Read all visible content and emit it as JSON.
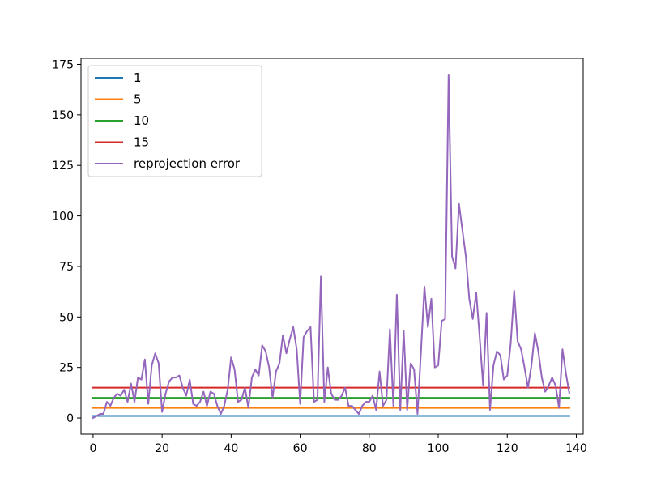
{
  "chart_data": {
    "type": "line",
    "title": "",
    "xlabel": "",
    "ylabel": "",
    "xlim": [
      -3.5,
      142
    ],
    "ylim": [
      -8,
      178
    ],
    "xticks": [
      0,
      20,
      40,
      60,
      80,
      100,
      120,
      140
    ],
    "yticks": [
      0,
      25,
      50,
      75,
      100,
      125,
      150,
      175
    ],
    "grid": false,
    "legend_position": "top-left",
    "series": [
      {
        "name": "1",
        "color": "#1f77b4",
        "x": [
          0,
          138
        ],
        "values": [
          1,
          1
        ]
      },
      {
        "name": "5",
        "color": "#ff7f0e",
        "x": [
          0,
          138
        ],
        "values": [
          5,
          5
        ]
      },
      {
        "name": "10",
        "color": "#2ca02c",
        "x": [
          0,
          138
        ],
        "values": [
          10,
          10
        ]
      },
      {
        "name": "15",
        "color": "#d62728",
        "x": [
          0,
          138
        ],
        "values": [
          15,
          15
        ]
      },
      {
        "name": "reprojection error",
        "color": "#9467bd",
        "x": [
          0,
          1,
          2,
          3,
          4,
          5,
          6,
          7,
          8,
          9,
          10,
          11,
          12,
          13,
          14,
          15,
          16,
          17,
          18,
          19,
          20,
          21,
          22,
          23,
          24,
          25,
          26,
          27,
          28,
          29,
          30,
          31,
          32,
          33,
          34,
          35,
          36,
          37,
          38,
          39,
          40,
          41,
          42,
          43,
          44,
          45,
          46,
          47,
          48,
          49,
          50,
          51,
          52,
          53,
          54,
          55,
          56,
          57,
          58,
          59,
          60,
          61,
          62,
          63,
          64,
          65,
          66,
          67,
          68,
          69,
          70,
          71,
          72,
          73,
          74,
          75,
          76,
          77,
          78,
          79,
          80,
          81,
          82,
          83,
          84,
          85,
          86,
          87,
          88,
          89,
          90,
          91,
          92,
          93,
          94,
          95,
          96,
          97,
          98,
          99,
          100,
          101,
          102,
          103,
          104,
          105,
          106,
          107,
          108,
          109,
          110,
          111,
          112,
          113,
          114,
          115,
          116,
          117,
          118,
          119,
          120,
          121,
          122,
          123,
          124,
          125,
          126,
          127,
          128,
          129,
          130,
          131,
          132,
          133,
          134,
          135,
          136,
          137,
          138
        ],
        "values": [
          0,
          1,
          2,
          2,
          8,
          6,
          10,
          12,
          11,
          14,
          8,
          17,
          8,
          20,
          19,
          29,
          7,
          26,
          32,
          27,
          3,
          12,
          18,
          20,
          20,
          21,
          15,
          11,
          19,
          7,
          6,
          8,
          13,
          6,
          13,
          12,
          6,
          2,
          6,
          14,
          30,
          24,
          8,
          9,
          15,
          5,
          20,
          24,
          21,
          36,
          33,
          25,
          10,
          23,
          27,
          41,
          32,
          39,
          45,
          34,
          7,
          40,
          43,
          45,
          8,
          9,
          70,
          8,
          25,
          12,
          9,
          9,
          11,
          15,
          6,
          6,
          4,
          2,
          6,
          8,
          8,
          11,
          4,
          23,
          6,
          9,
          44,
          6,
          61,
          4,
          43,
          4,
          27,
          24,
          2,
          33,
          65,
          45,
          59,
          25,
          26,
          48,
          49,
          170,
          80,
          74,
          106,
          93,
          80,
          59,
          49,
          62,
          40,
          16,
          52,
          4,
          26,
          33,
          31,
          19,
          21,
          37,
          63,
          38,
          34,
          25,
          15,
          26,
          42,
          33,
          20,
          13,
          16,
          20,
          16,
          5,
          34,
          22,
          12
        ]
      }
    ]
  }
}
